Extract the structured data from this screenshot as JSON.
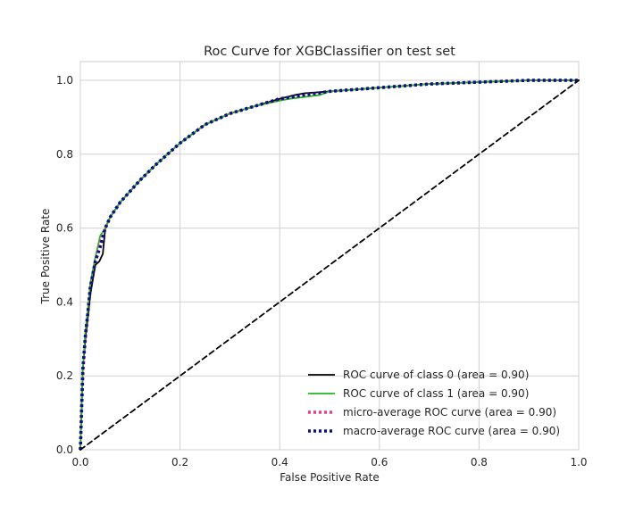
{
  "chart_data": {
    "type": "line",
    "title": "Roc Curve for XGBClassifier on test set",
    "xlabel": "False Positive Rate",
    "ylabel": "True Positive Rate",
    "xlim": [
      0.0,
      1.0
    ],
    "ylim": [
      0.0,
      1.05
    ],
    "xticks": [
      "0.0",
      "0.2",
      "0.4",
      "0.6",
      "0.8",
      "1.0"
    ],
    "yticks": [
      "0.0",
      "0.2",
      "0.4",
      "0.6",
      "0.8",
      "1.0"
    ],
    "grid": true,
    "legend_position": "lower-right",
    "series": [
      {
        "name": "ROC curve of class 0 (area = 0.90)",
        "color": "#000000",
        "style": "solid",
        "x": [
          0.0,
          0.005,
          0.01,
          0.015,
          0.02,
          0.03,
          0.038,
          0.045,
          0.05,
          0.06,
          0.08,
          0.1,
          0.12,
          0.15,
          0.2,
          0.25,
          0.3,
          0.35,
          0.4,
          0.43,
          0.45,
          0.5,
          0.6,
          0.7,
          0.8,
          0.9,
          1.0
        ],
        "y": [
          0.0,
          0.22,
          0.3,
          0.36,
          0.42,
          0.5,
          0.51,
          0.53,
          0.6,
          0.63,
          0.67,
          0.7,
          0.73,
          0.77,
          0.83,
          0.88,
          0.91,
          0.93,
          0.95,
          0.96,
          0.965,
          0.97,
          0.98,
          0.99,
          0.995,
          1.0,
          1.0
        ]
      },
      {
        "name": "ROC curve of class 1 (area = 0.90)",
        "color": "#22b522",
        "style": "solid",
        "x": [
          0.0,
          0.005,
          0.01,
          0.015,
          0.02,
          0.03,
          0.04,
          0.05,
          0.06,
          0.08,
          0.1,
          0.12,
          0.15,
          0.2,
          0.25,
          0.3,
          0.35,
          0.4,
          0.42,
          0.45,
          0.48,
          0.5,
          0.6,
          0.7,
          0.8,
          0.9,
          1.0
        ],
        "y": [
          0.0,
          0.22,
          0.32,
          0.38,
          0.45,
          0.52,
          0.58,
          0.6,
          0.63,
          0.67,
          0.7,
          0.73,
          0.77,
          0.83,
          0.88,
          0.91,
          0.93,
          0.945,
          0.95,
          0.955,
          0.96,
          0.97,
          0.98,
          0.99,
          0.995,
          1.0,
          1.0
        ]
      },
      {
        "name": "micro-average ROC curve (area = 0.90)",
        "color": "#ea3b8e",
        "style": "dotted",
        "x": [
          0.0,
          0.005,
          0.01,
          0.015,
          0.02,
          0.03,
          0.04,
          0.05,
          0.06,
          0.08,
          0.1,
          0.12,
          0.15,
          0.2,
          0.25,
          0.3,
          0.35,
          0.4,
          0.45,
          0.5,
          0.6,
          0.7,
          0.8,
          0.9,
          1.0
        ],
        "y": [
          0.0,
          0.21,
          0.3,
          0.37,
          0.44,
          0.51,
          0.56,
          0.6,
          0.63,
          0.67,
          0.7,
          0.73,
          0.77,
          0.83,
          0.88,
          0.91,
          0.93,
          0.95,
          0.96,
          0.97,
          0.98,
          0.99,
          0.995,
          1.0,
          1.0
        ]
      },
      {
        "name": "macro-average ROC curve (area = 0.90)",
        "color": "#0e0e8a",
        "style": "dotted",
        "x": [
          0.0,
          0.005,
          0.01,
          0.015,
          0.02,
          0.03,
          0.04,
          0.05,
          0.06,
          0.08,
          0.1,
          0.12,
          0.15,
          0.2,
          0.25,
          0.3,
          0.35,
          0.4,
          0.45,
          0.5,
          0.6,
          0.7,
          0.8,
          0.9,
          1.0
        ],
        "y": [
          0.0,
          0.22,
          0.31,
          0.37,
          0.44,
          0.51,
          0.55,
          0.6,
          0.63,
          0.67,
          0.7,
          0.73,
          0.77,
          0.83,
          0.88,
          0.91,
          0.93,
          0.95,
          0.96,
          0.97,
          0.98,
          0.99,
          0.995,
          1.0,
          1.0
        ]
      },
      {
        "name": "",
        "color": "#000000",
        "style": "dashed",
        "x": [
          0.0,
          1.0
        ],
        "y": [
          0.0,
          1.0
        ]
      }
    ]
  }
}
